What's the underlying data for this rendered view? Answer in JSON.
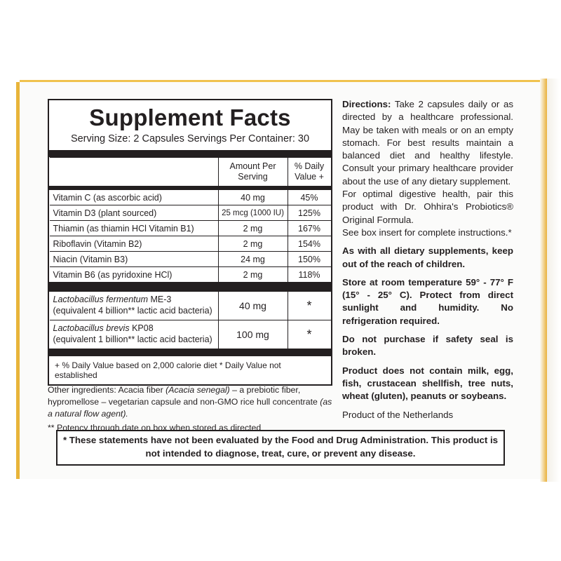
{
  "facts": {
    "title": "Supplement Facts",
    "serving": "Serving Size: 2 Capsules  Servings Per Container: 30",
    "col_amount": "Amount Per Serving",
    "col_dv": "% Daily Value +",
    "vitamins": [
      {
        "name": "Vitamin C (as ascorbic acid)",
        "amount": "40 mg",
        "dv": "45%"
      },
      {
        "name": "Vitamin D3 (plant sourced)",
        "amount": "25 mcg (1000 IU)",
        "dv": "125%"
      },
      {
        "name": "Thiamin (as thiamin HCl  Vitamin B1)",
        "amount": "2 mg",
        "dv": "167%"
      },
      {
        "name": "Riboflavin (Vitamin B2)",
        "amount": "2 mg",
        "dv": "154%"
      },
      {
        "name": "Niacin (Vitamin B3)",
        "amount": "24 mg",
        "dv": "150%"
      },
      {
        "name": "Vitamin B6 (as pyridoxine HCl)",
        "amount": "2 mg",
        "dv": "118%"
      }
    ],
    "probiotics": [
      {
        "name": "Lactobacillus fermentum",
        "strain": "ME-3",
        "detail": "(equivalent 4 billion** lactic acid bacteria)",
        "amount": "40 mg",
        "dv": "*"
      },
      {
        "name": "Lactobacillus brevis",
        "strain": "KP08",
        "detail": "(equivalent 1 billion** lactic acid bacteria)",
        "amount": "100 mg",
        "dv": "*"
      }
    ],
    "footnote": "+  % Daily Value based on 2,000 calorie diet  * Daily Value not established"
  },
  "other": {
    "p1": "Other ingredients: Acacia fiber ",
    "p1i": "(Acacia senegal)",
    "p2": " – a prebiotic fiber, hypromellose – vegetarian capsule and non-GMO rice hull concentrate ",
    "p2i": "(as a natural flow agent).",
    "potency": "** Potency through date on box when stored as directed"
  },
  "right": {
    "directions_label": "Directions:",
    "directions": " Take 2 capsules daily or as directed by a healthcare professional. May be taken with meals or on an empty stomach.  For best results maintain a balanced diet and healthy lifestyle.  Consult your primary healthcare provider about the use of any dietary supplement.",
    "pair": "For optimal digestive health, pair this product with Dr. Ohhira's Probiotics® Original Formula.",
    "insert": "See box insert for complete instructions.*",
    "children": "As with all dietary supplements, keep out of the reach of children.",
    "store": "Store at room temperature 59° - 77° F (15° - 25° C). Protect from direct sunlight and humidity. No refrigeration required.",
    "seal": "Do not purchase if safety seal is broken.",
    "allergens": "Product does not contain milk, egg, fish, crustacean shellfish, tree nuts, wheat (gluten), peanuts or soybeans.",
    "origin": "Product of the Netherlands"
  },
  "disclaimer": "* These statements have not been evaluated by the Food and Drug Administration. This product is not intended to diagnose, treat, cure, or prevent any disease."
}
